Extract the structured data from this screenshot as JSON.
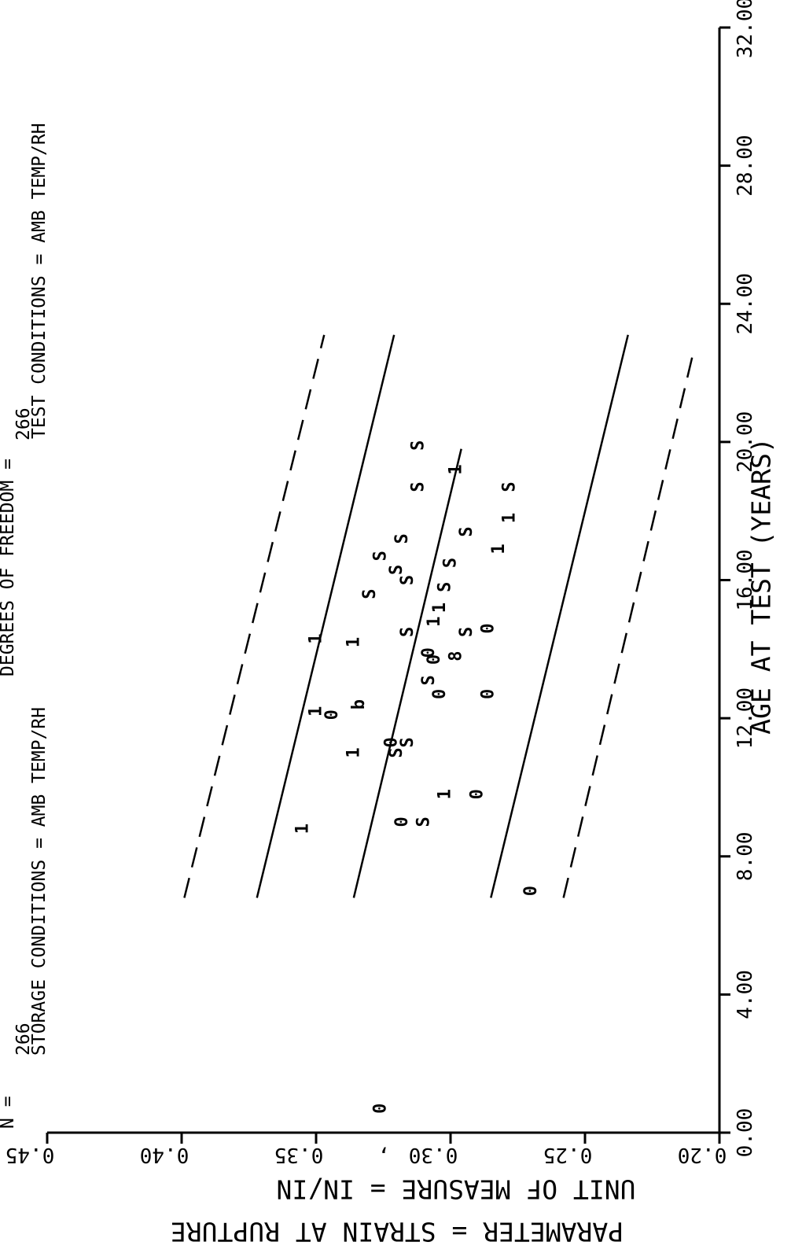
{
  "chart_data": {
    "type": "scatter",
    "header": {
      "line1_left": "N =",
      "line1_right": "DEGREES OF FREEDOM =",
      "line2": "266",
      "line2_right": "266",
      "storage_conditions": "STORAGE CONDITIONS = AMB TEMP/RH",
      "test_conditions": "TEST CONDITIONS = AMB TEMP/RH"
    },
    "xlabel": "AGE AT TEST    (YEARS)",
    "ylabel_lines": [
      "UNIT OF MEASURE  =  IN/IN",
      "PARAMETER  =  STRAIN AT RUPTURE"
    ],
    "xlim": [
      0,
      32
    ],
    "ylim": [
      0.2,
      0.45
    ],
    "x_ticks": [
      "0.00",
      "4.00",
      "8.00",
      "12.00",
      "16.00",
      "20.00",
      "24.00",
      "28.00",
      "32.00"
    ],
    "y_ticks": [
      "0.20",
      "0.25",
      "0.30",
      "0.35",
      "0.40",
      "0.45"
    ],
    "stray_mark": ",",
    "points": [
      {
        "x": 0.7,
        "y": 0.326,
        "label": "0"
      },
      {
        "x": 7.0,
        "y": 0.27,
        "label": "0"
      },
      {
        "x": 8.8,
        "y": 0.355,
        "label": "1"
      },
      {
        "x": 9.0,
        "y": 0.318,
        "label": "0"
      },
      {
        "x": 9.0,
        "y": 0.31,
        "label": "S"
      },
      {
        "x": 9.8,
        "y": 0.302,
        "label": "1"
      },
      {
        "x": 9.8,
        "y": 0.29,
        "label": "0"
      },
      {
        "x": 11.0,
        "y": 0.336,
        "label": "1"
      },
      {
        "x": 11.0,
        "y": 0.32,
        "label": "S"
      },
      {
        "x": 11.3,
        "y": 0.322,
        "label": "0"
      },
      {
        "x": 11.3,
        "y": 0.316,
        "label": "S"
      },
      {
        "x": 12.1,
        "y": 0.344,
        "label": "0"
      },
      {
        "x": 12.2,
        "y": 0.35,
        "label": "1"
      },
      {
        "x": 12.4,
        "y": 0.334,
        "label": "b"
      },
      {
        "x": 12.7,
        "y": 0.286,
        "label": "0"
      },
      {
        "x": 12.7,
        "y": 0.304,
        "label": "0"
      },
      {
        "x": 13.1,
        "y": 0.308,
        "label": "S"
      },
      {
        "x": 13.7,
        "y": 0.306,
        "label": "0"
      },
      {
        "x": 13.8,
        "y": 0.298,
        "label": "8"
      },
      {
        "x": 13.9,
        "y": 0.308,
        "label": "0"
      },
      {
        "x": 14.2,
        "y": 0.336,
        "label": "1"
      },
      {
        "x": 14.3,
        "y": 0.35,
        "label": "1"
      },
      {
        "x": 14.5,
        "y": 0.316,
        "label": "S"
      },
      {
        "x": 14.5,
        "y": 0.294,
        "label": "S"
      },
      {
        "x": 14.6,
        "y": 0.286,
        "label": "0"
      },
      {
        "x": 14.8,
        "y": 0.306,
        "label": "1"
      },
      {
        "x": 15.2,
        "y": 0.304,
        "label": "1"
      },
      {
        "x": 15.6,
        "y": 0.33,
        "label": "S"
      },
      {
        "x": 15.8,
        "y": 0.302,
        "label": "S"
      },
      {
        "x": 16.0,
        "y": 0.316,
        "label": "S"
      },
      {
        "x": 16.3,
        "y": 0.32,
        "label": "S"
      },
      {
        "x": 16.5,
        "y": 0.3,
        "label": "S"
      },
      {
        "x": 16.7,
        "y": 0.326,
        "label": "S"
      },
      {
        "x": 16.9,
        "y": 0.282,
        "label": "1"
      },
      {
        "x": 17.2,
        "y": 0.318,
        "label": "S"
      },
      {
        "x": 17.4,
        "y": 0.294,
        "label": "S"
      },
      {
        "x": 17.8,
        "y": 0.278,
        "label": "1"
      },
      {
        "x": 18.7,
        "y": 0.312,
        "label": "S"
      },
      {
        "x": 18.7,
        "y": 0.278,
        "label": "S"
      },
      {
        "x": 19.2,
        "y": 0.298,
        "label": "1"
      },
      {
        "x": 19.9,
        "y": 0.312,
        "label": "S"
      }
    ],
    "lines": [
      {
        "style": "dashed",
        "x": [
          6.8,
          23.1
        ],
        "y": [
          0.399,
          0.347
        ]
      },
      {
        "style": "solid",
        "x": [
          6.8,
          23.1
        ],
        "y": [
          0.372,
          0.321
        ]
      },
      {
        "style": "solid",
        "x": [
          6.8,
          19.8
        ],
        "y": [
          0.336,
          0.296
        ]
      },
      {
        "style": "solid",
        "x": [
          6.8,
          23.1
        ],
        "y": [
          0.285,
          0.234
        ]
      },
      {
        "style": "dashed",
        "x": [
          6.8,
          22.5
        ],
        "y": [
          0.258,
          0.21
        ]
      }
    ]
  }
}
